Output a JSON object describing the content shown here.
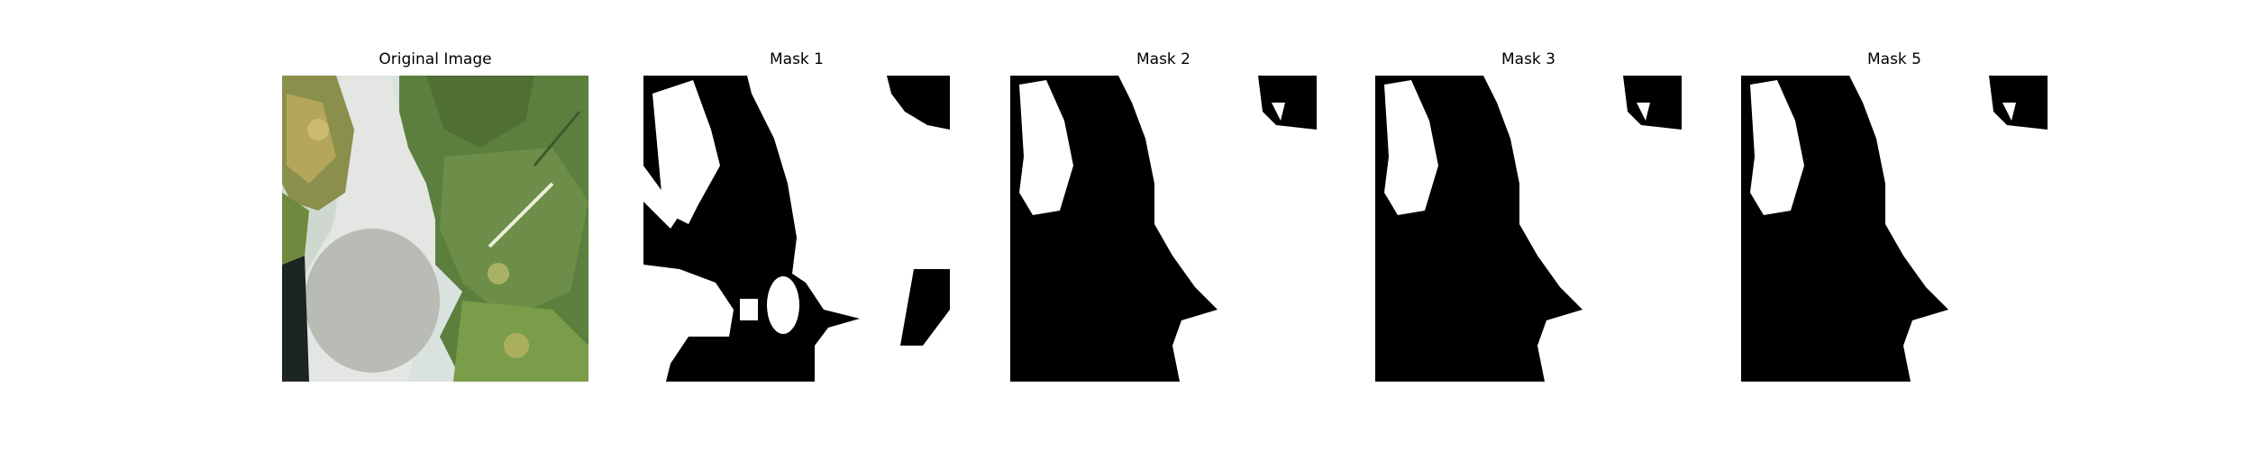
{
  "panels": [
    {
      "title": "Original Image",
      "kind": "photo"
    },
    {
      "title": "Mask 1",
      "kind": "mask"
    },
    {
      "title": "Mask 2",
      "kind": "mask"
    },
    {
      "title": "Mask 3",
      "kind": "mask"
    },
    {
      "title": "Mask 5",
      "kind": "mask"
    }
  ]
}
